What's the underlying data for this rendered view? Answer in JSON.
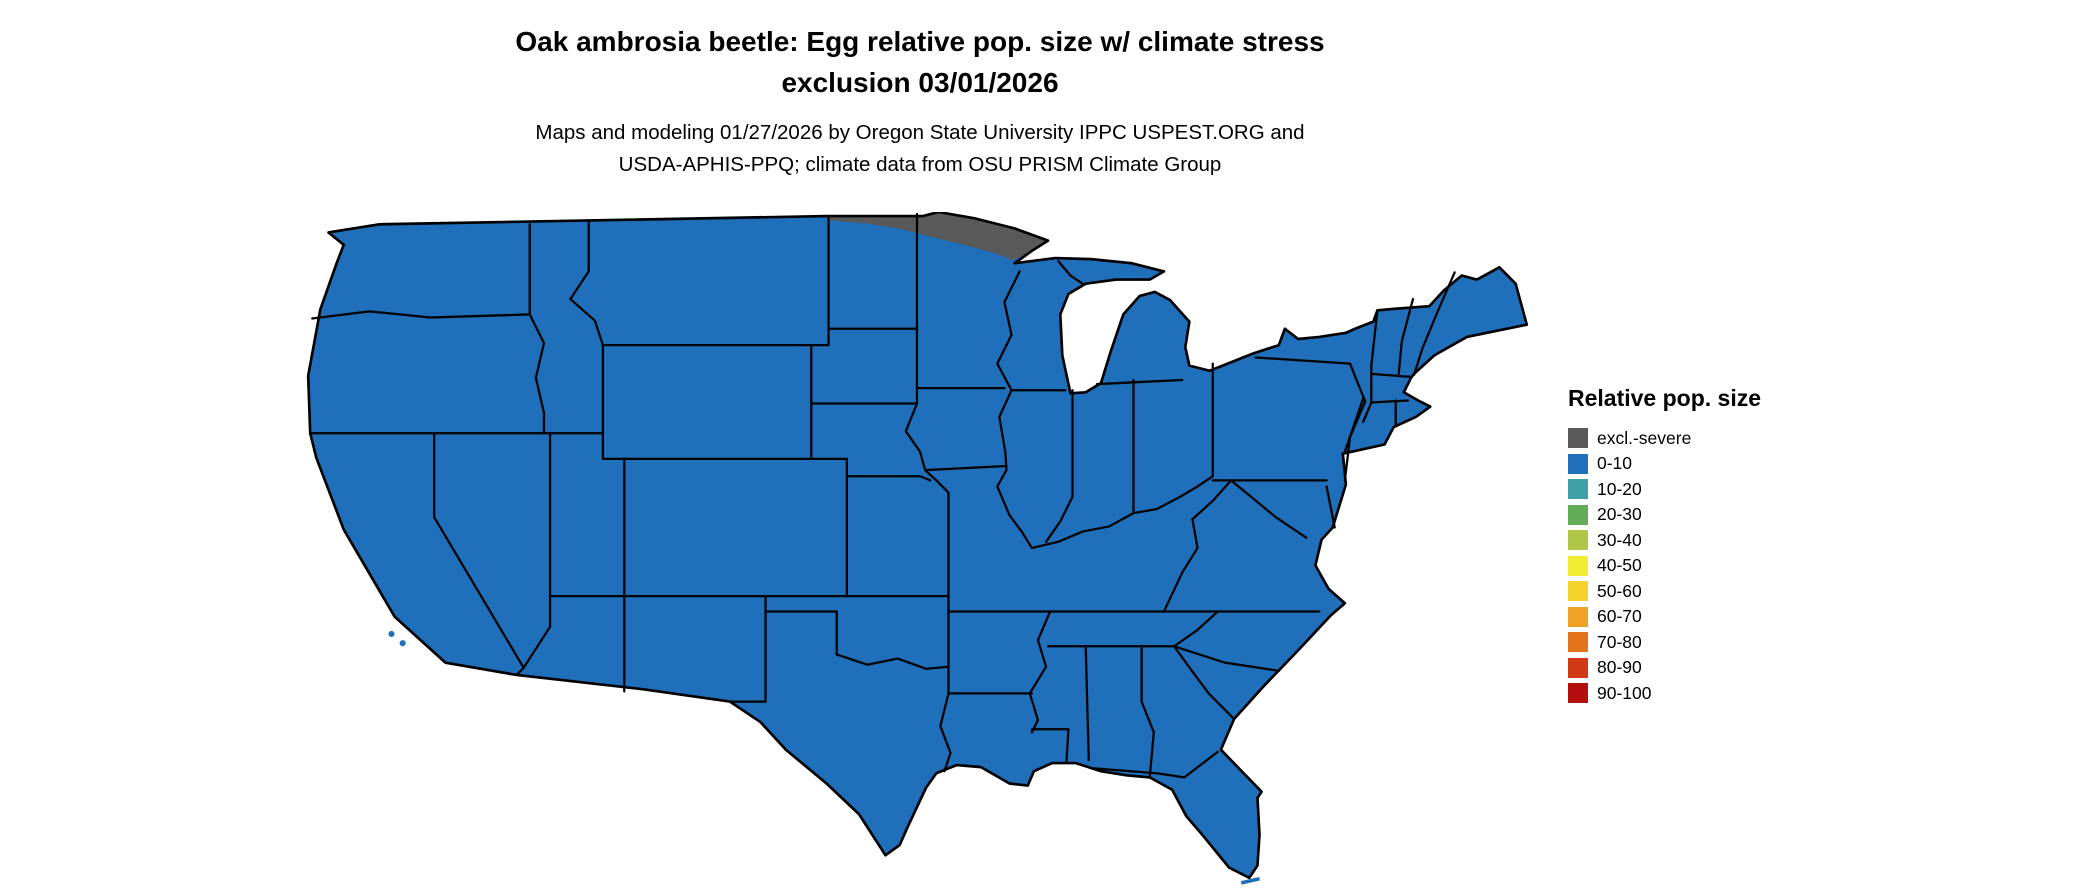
{
  "header": {
    "title_line1": "Oak ambrosia beetle: Egg relative pop. size w/ climate stress",
    "title_line2": "exclusion 03/01/2026",
    "subtitle_line1": "Maps and modeling 01/27/2026 by Oregon State University IPPC USPEST.ORG and",
    "subtitle_line2": "USDA-APHIS-PPQ; climate data from OSU PRISM Climate Group"
  },
  "map": {
    "land_color": "#1F6FBA",
    "exclusion_color": "#595959",
    "border_color": "#000000",
    "background_color": "#FFFFFF"
  },
  "legend": {
    "title": "Relative pop. size",
    "items": [
      {
        "label": "excl.-severe",
        "color": "#595959"
      },
      {
        "label": "0-10",
        "color": "#1F6FBA"
      },
      {
        "label": "10-20",
        "color": "#3FA0A5"
      },
      {
        "label": "20-30",
        "color": "#63AC58"
      },
      {
        "label": "30-40",
        "color": "#AEC747"
      },
      {
        "label": "40-50",
        "color": "#F2EC33"
      },
      {
        "label": "50-60",
        "color": "#F4D22B"
      },
      {
        "label": "60-70",
        "color": "#EFA125"
      },
      {
        "label": "70-80",
        "color": "#E3731C"
      },
      {
        "label": "80-90",
        "color": "#D13A15"
      },
      {
        "label": "90-100",
        "color": "#B40F0F"
      }
    ]
  }
}
